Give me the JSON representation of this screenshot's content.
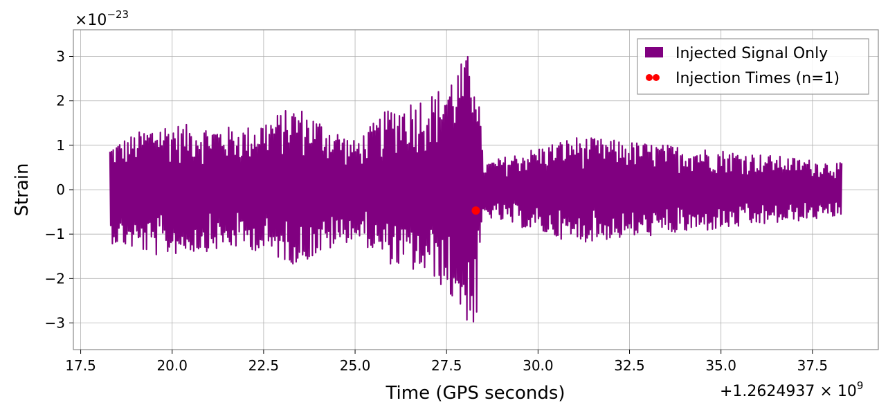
{
  "chart_data": {
    "type": "line",
    "xlabel": "Time (GPS seconds)",
    "ylabel": "Strain",
    "x_offset_label": "+1.2624937 × 10",
    "x_offset_exponent": "9",
    "y_multiplier_label": "×10",
    "y_multiplier_exponent": "−23",
    "xlim": [
      17.3,
      39.3
    ],
    "ylim": [
      -3.6,
      3.6
    ],
    "grid": true,
    "legend_position": "top-right",
    "x_ticks": [
      17.5,
      20.0,
      22.5,
      25.0,
      27.5,
      30.0,
      32.5,
      35.0,
      37.5
    ],
    "x_tick_labels": [
      "17.5",
      "20.0",
      "22.5",
      "25.0",
      "27.5",
      "30.0",
      "32.5",
      "35.0",
      "37.5"
    ],
    "y_ticks": [
      -3,
      -2,
      -1,
      0,
      1,
      2,
      3
    ],
    "y_tick_labels": [
      "−3",
      "−2",
      "−1",
      "0",
      "1",
      "2",
      "3"
    ],
    "series": [
      {
        "name": "Injected Signal Only",
        "kind": "line",
        "color": "#800080",
        "x_range": [
          18.3,
          38.3
        ],
        "description_points": [
          {
            "x": 18.3,
            "y_min": -1.2,
            "y_max": 1.0
          },
          {
            "x": 19.6,
            "y_min": -1.5,
            "y_max": 1.5
          },
          {
            "x": 22.0,
            "y_min": -1.3,
            "y_max": 1.4
          },
          {
            "x": 23.4,
            "y_min": -1.7,
            "y_max": 1.9
          },
          {
            "x": 25.0,
            "y_min": -1.1,
            "y_max": 1.1
          },
          {
            "x": 26.0,
            "y_min": -1.7,
            "y_max": 1.9
          },
          {
            "x": 27.2,
            "y_min": -2.0,
            "y_max": 2.2
          },
          {
            "x": 28.3,
            "y_min": -3.25,
            "y_max": 3.25
          },
          {
            "x": 28.5,
            "y_min": -0.6,
            "y_max": 0.6
          },
          {
            "x": 31.0,
            "y_min": -1.2,
            "y_max": 1.2
          },
          {
            "x": 35.0,
            "y_min": -0.9,
            "y_max": 0.9
          },
          {
            "x": 38.3,
            "y_min": -0.6,
            "y_max": 0.6
          }
        ]
      },
      {
        "name": "Injection Times (n=1)",
        "kind": "scatter",
        "color": "#ff0000",
        "points": [
          {
            "x": 28.3,
            "y": -0.47
          }
        ]
      }
    ]
  }
}
